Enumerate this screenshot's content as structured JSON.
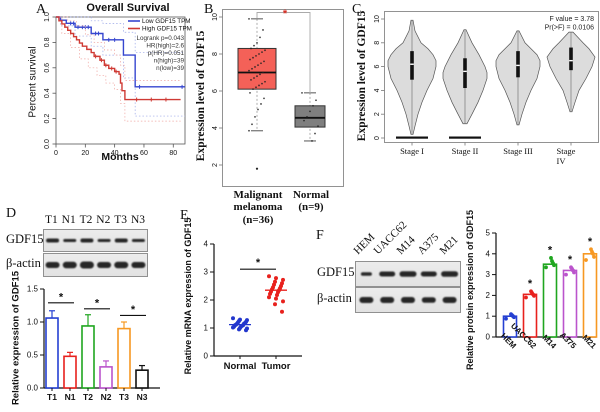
{
  "figure": {
    "letters": [
      "A",
      "B",
      "C",
      "D",
      "E",
      "F"
    ]
  },
  "panelD": {
    "lanes": [
      "T1",
      "N1",
      "T2",
      "N2",
      "T3",
      "N3"
    ],
    "rows": [
      "GDF15",
      "β-actin"
    ],
    "gdf15_band_h": [
      4,
      3,
      4,
      3,
      4,
      3
    ],
    "actin_band_h": [
      6,
      6.5,
      7,
      6,
      6.5,
      6
    ]
  },
  "panelF": {
    "lanes": [
      "HEM",
      "UACC62",
      "M14",
      "A375",
      "M21"
    ],
    "rows": [
      "GDF15",
      "β-actin"
    ],
    "gdf15_band_h": [
      3.5,
      5,
      5.5,
      5,
      5.5
    ],
    "actin_band_h": [
      6,
      6,
      6,
      5.5,
      6
    ]
  },
  "chart_data": [
    {
      "type": "line",
      "subtype": "kaplan-meier",
      "title": "Overall Survival",
      "xlabel": "Months",
      "ylabel": "Percent survival",
      "xlim": [
        0,
        88
      ],
      "ylim": [
        0,
        1
      ],
      "xticks": [
        0,
        20,
        40,
        60,
        80
      ],
      "yticks": [
        "0.0",
        "0.2",
        "0.4",
        "0.6",
        "0.8",
        "1.0"
      ],
      "stats": [
        "Logrank p=0.043",
        "HR(high)=2.6",
        "p(HR)=0.051",
        "n(high)=39",
        "n(low)=39"
      ],
      "series": [
        {
          "name": "Low GDF15 TPM",
          "color": "#3646cf",
          "ci_color": "#9aa6e8",
          "steps": [
            [
              0,
              1
            ],
            [
              3,
              0.975
            ],
            [
              7,
              0.95
            ],
            [
              13,
              0.92
            ],
            [
              24,
              0.87
            ],
            [
              32,
              0.82
            ],
            [
              45,
              0.82
            ],
            [
              46,
              0.7
            ],
            [
              53,
              0.7
            ],
            [
              54,
              0.45
            ],
            [
              88,
              0.45
            ]
          ],
          "censors": [
            [
              10,
              0.95
            ],
            [
              12,
              0.95
            ],
            [
              15,
              0.92
            ],
            [
              18,
              0.92
            ],
            [
              20,
              0.92
            ],
            [
              22,
              0.92
            ],
            [
              27,
              0.87
            ],
            [
              29,
              0.87
            ],
            [
              36,
              0.82
            ],
            [
              40,
              0.82
            ],
            [
              57,
              0.45
            ],
            [
              86,
              0.45
            ]
          ],
          "ci_upper": [
            [
              0,
              1
            ],
            [
              13,
              1
            ],
            [
              24,
              0.97
            ],
            [
              32,
              0.95
            ],
            [
              45,
              0.95
            ],
            [
              46,
              0.88
            ],
            [
              53,
              0.88
            ],
            [
              54,
              0.72
            ],
            [
              88,
              0.72
            ]
          ],
          "ci_lower": [
            [
              0,
              1
            ],
            [
              3,
              0.93
            ],
            [
              13,
              0.85
            ],
            [
              24,
              0.77
            ],
            [
              32,
              0.7
            ],
            [
              45,
              0.7
            ],
            [
              46,
              0.52
            ],
            [
              53,
              0.52
            ],
            [
              54,
              0.22
            ],
            [
              88,
              0.22
            ]
          ]
        },
        {
          "name": "High GDF15 TPM",
          "color": "#cf3a34",
          "ci_color": "#f0a8a4",
          "steps": [
            [
              0,
              1
            ],
            [
              2,
              0.97
            ],
            [
              4,
              0.945
            ],
            [
              6,
              0.92
            ],
            [
              8,
              0.895
            ],
            [
              10,
              0.87
            ],
            [
              12,
              0.845
            ],
            [
              14,
              0.82
            ],
            [
              16,
              0.795
            ],
            [
              18,
              0.77
            ],
            [
              21,
              0.745
            ],
            [
              24,
              0.72
            ],
            [
              26,
              0.69
            ],
            [
              30,
              0.66
            ],
            [
              33,
              0.62
            ],
            [
              36,
              0.595
            ],
            [
              40,
              0.57
            ],
            [
              43,
              0.55
            ],
            [
              44,
              0.48
            ],
            [
              45,
              0.42
            ],
            [
              47,
              0.35
            ],
            [
              85,
              0.35
            ]
          ],
          "censors": [
            [
              27,
              0.69
            ],
            [
              31,
              0.66
            ],
            [
              34,
              0.62
            ],
            [
              38,
              0.595
            ],
            [
              41,
              0.57
            ],
            [
              55,
              0.35
            ],
            [
              65,
              0.35
            ],
            [
              75,
              0.35
            ]
          ],
          "ci_upper": [
            [
              0,
              1
            ],
            [
              8,
              0.97
            ],
            [
              14,
              0.93
            ],
            [
              20,
              0.86
            ],
            [
              26,
              0.8
            ],
            [
              33,
              0.74
            ],
            [
              40,
              0.7
            ],
            [
              44,
              0.62
            ],
            [
              47,
              0.5
            ],
            [
              85,
              0.5
            ]
          ],
          "ci_lower": [
            [
              0,
              1
            ],
            [
              4,
              0.87
            ],
            [
              10,
              0.76
            ],
            [
              16,
              0.67
            ],
            [
              22,
              0.6
            ],
            [
              28,
              0.54
            ],
            [
              34,
              0.48
            ],
            [
              40,
              0.43
            ],
            [
              44,
              0.32
            ],
            [
              47,
              0.18
            ],
            [
              85,
              0.18
            ]
          ]
        }
      ]
    },
    {
      "type": "box",
      "ylabel": "Expression level of GDF15",
      "ylim": [
        1.5,
        10.5
      ],
      "yticks": [
        2,
        4,
        6,
        8,
        10
      ],
      "significance": "*",
      "sig_color": "#d62c22",
      "groups": [
        {
          "label": "Malignant\nmelanoma\n(n=36)",
          "color": "#f46158",
          "whisker_low": 3.85,
          "q1": 6.1,
          "median": 7.0,
          "q3": 8.3,
          "whisker_high": 9.9,
          "outliers": [
            1.8
          ],
          "points": [
            9.9,
            9.3,
            8.9,
            8.6,
            8.45,
            8.3,
            8.2,
            8.1,
            8.0,
            7.9,
            7.8,
            7.7,
            7.6,
            7.5,
            7.4,
            7.3,
            7.2,
            7.1,
            7.0,
            6.9,
            6.8,
            6.7,
            6.6,
            6.5,
            6.4,
            6.3,
            6.2,
            6.1,
            5.9,
            5.6,
            5.3,
            5.0,
            4.6,
            4.2,
            3.85
          ]
        },
        {
          "label": "Normal\n(n=9)",
          "color": "#7f7f7f",
          "whisker_low": 3.3,
          "q1": 4.05,
          "median": 4.55,
          "q3": 5.2,
          "whisker_high": 5.9,
          "outliers": [],
          "points": [
            5.9,
            5.5,
            5.2,
            4.9,
            4.6,
            4.4,
            4.1,
            3.7,
            3.3
          ]
        }
      ]
    },
    {
      "type": "violin",
      "ylabel": "Expression level of GDF15",
      "ylim": [
        0,
        10
      ],
      "yticks": [
        0,
        2,
        4,
        6,
        8,
        10
      ],
      "stats": [
        "F value = 3.78",
        "Pr(>F) = 0.0106"
      ],
      "groups": [
        {
          "label": "Stage I",
          "min": 0.3,
          "max": 9.9,
          "q1": 4.9,
          "median": 6.2,
          "q3": 7.3,
          "base_bar": true,
          "profile": [
            [
              0.3,
              1
            ],
            [
              1,
              3
            ],
            [
              2,
              6
            ],
            [
              3,
              10
            ],
            [
              4,
              15
            ],
            [
              5,
              21
            ],
            [
              6,
              24
            ],
            [
              6.5,
              24
            ],
            [
              7,
              21
            ],
            [
              7.5,
              16
            ],
            [
              8,
              9
            ],
            [
              9,
              3
            ],
            [
              9.9,
              1
            ]
          ]
        },
        {
          "label": "Stage II",
          "min": 1.2,
          "max": 9.1,
          "q1": 4.2,
          "median": 5.6,
          "q3": 6.7,
          "base_bar": true,
          "profile": [
            [
              1.2,
              2
            ],
            [
              2,
              7
            ],
            [
              3,
              13
            ],
            [
              4,
              18
            ],
            [
              5,
              22
            ],
            [
              5.5,
              22
            ],
            [
              6,
              20
            ],
            [
              7,
              14
            ],
            [
              8,
              7
            ],
            [
              9.1,
              1
            ]
          ]
        },
        {
          "label": "Stage III",
          "min": 1.1,
          "max": 9.0,
          "q1": 5.1,
          "median": 6.1,
          "q3": 7.3,
          "base_bar": false,
          "profile": [
            [
              1.1,
              1
            ],
            [
              2,
              4
            ],
            [
              3,
              8
            ],
            [
              4,
              13
            ],
            [
              5,
              19
            ],
            [
              6,
              22
            ],
            [
              6.5,
              22
            ],
            [
              7,
              19
            ],
            [
              7.5,
              13
            ],
            [
              8,
              7
            ],
            [
              9,
              1
            ]
          ]
        },
        {
          "label": "Stage IV",
          "min": 2.2,
          "max": 8.9,
          "q1": 5.7,
          "median": 6.5,
          "q3": 7.6,
          "base_bar": false,
          "profile": [
            [
              2.2,
              1
            ],
            [
              3,
              4
            ],
            [
              4,
              8
            ],
            [
              5,
              15
            ],
            [
              6,
              21
            ],
            [
              6.8,
              24
            ],
            [
              7.5,
              18
            ],
            [
              8,
              12
            ],
            [
              8.9,
              2
            ]
          ]
        }
      ]
    },
    {
      "type": "bar",
      "ylabel": "Relative expression of GDF15",
      "ylim": [
        0,
        1.5
      ],
      "yticks": [
        "0.0",
        "0.5",
        "1.0",
        "1.5"
      ],
      "categories": [
        "T1",
        "N1",
        "T2",
        "N2",
        "T3",
        "N3"
      ],
      "values": [
        1.06,
        0.48,
        0.94,
        0.32,
        0.9,
        0.27
      ],
      "errors": [
        0.11,
        0.06,
        0.17,
        0.09,
        0.1,
        0.07
      ],
      "colors": [
        "#2540d2",
        "#e8211d",
        "#1fa61f",
        "#bb54cc",
        "#f79822",
        "#111111"
      ],
      "sig": [
        {
          "pair": [
            0,
            1
          ],
          "y": 1.29,
          "label": "*"
        },
        {
          "pair": [
            2,
            3
          ],
          "y": 1.2,
          "label": "*"
        },
        {
          "pair": [
            4,
            5
          ],
          "y": 1.1,
          "label": "*"
        }
      ]
    },
    {
      "type": "scatter",
      "ylabel": "Relative mRNA expression of GDF15",
      "ylim": [
        0,
        4
      ],
      "yticks": [
        0,
        1,
        2,
        3,
        4
      ],
      "sig": {
        "y": 3.1,
        "label": "*"
      },
      "groups": [
        {
          "label": "Normal",
          "color": "#2337cd",
          "median": 1.12,
          "values": [
            1.35,
            1.3,
            1.28,
            1.25,
            1.22,
            1.2,
            1.18,
            1.15,
            1.15,
            1.12,
            1.1,
            1.1,
            1.08,
            1.05,
            1.05,
            1.02,
            1.0,
            0.98,
            0.95,
            0.92
          ]
        },
        {
          "label": "Tumor",
          "color": "#e8211d",
          "median": 2.35,
          "values": [
            2.85,
            2.78,
            2.72,
            2.65,
            2.6,
            2.55,
            2.5,
            2.45,
            2.42,
            2.38,
            2.35,
            2.3,
            2.28,
            2.22,
            2.18,
            2.1,
            2.05,
            1.95,
            1.85,
            1.58
          ]
        }
      ]
    },
    {
      "type": "bar",
      "ylabel": "Relative protein expression of GDF15",
      "ylim": [
        0,
        5
      ],
      "yticks": [
        0,
        1,
        2,
        3,
        4,
        5
      ],
      "categories": [
        "HEM",
        "UACC62",
        "M14",
        "A375",
        "M21"
      ],
      "values": [
        1.0,
        2.05,
        3.5,
        3.2,
        4.0
      ],
      "colors": [
        "#2540d2",
        "#e8211d",
        "#1fa61f",
        "#bb54cc",
        "#f79822"
      ],
      "points": [
        [
          0.88,
          0.95,
          1.0,
          1.05,
          1.1
        ],
        [
          1.9,
          1.98,
          2.05,
          2.12,
          2.2
        ],
        [
          3.35,
          3.45,
          3.55,
          3.65,
          3.8
        ],
        [
          3.0,
          3.1,
          3.2,
          3.28,
          3.35
        ],
        [
          3.7,
          3.85,
          4.0,
          4.1,
          4.22
        ]
      ],
      "sig": [
        "",
        "*",
        "*",
        "*",
        "*"
      ]
    }
  ]
}
